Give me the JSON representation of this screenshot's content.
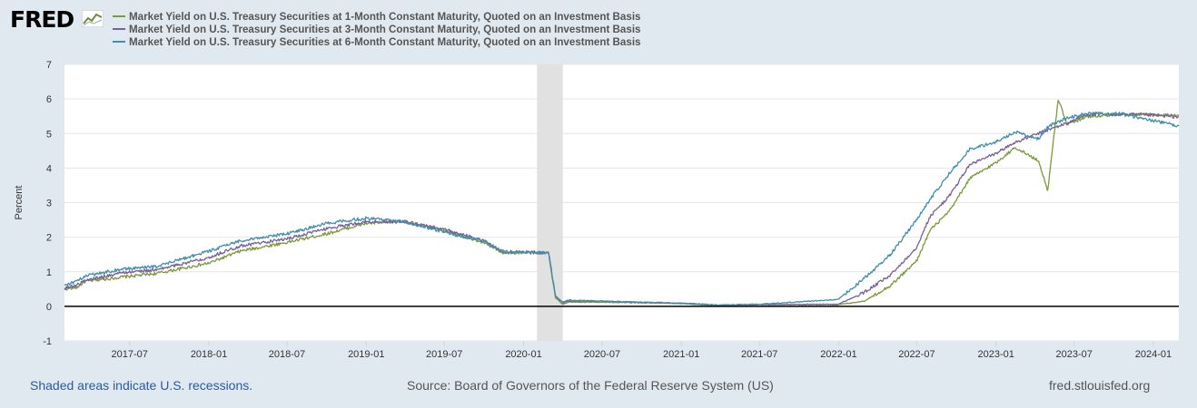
{
  "header": {
    "logo_text": "FRED",
    "logo_icon": "line-chart-icon"
  },
  "colors": {
    "background": "#e1e9f0",
    "plot_background": "#ffffff",
    "grid": "#e6e6e6",
    "recession": "#e1e1e1",
    "zero_line": "#000000"
  },
  "chart_data": {
    "type": "line",
    "title": "",
    "xlabel": "",
    "ylabel": "Percent",
    "xlim": [
      "2017-01-31",
      "2024-02-29"
    ],
    "ylim": [
      -1,
      7
    ],
    "y_ticks": [
      "-1",
      "0",
      "1",
      "2",
      "3",
      "4",
      "5",
      "6",
      "7"
    ],
    "x_ticks": [
      "2017-07",
      "2018-01",
      "2018-07",
      "2019-01",
      "2019-07",
      "2020-01",
      "2020-07",
      "2021-01",
      "2021-07",
      "2022-01",
      "2022-07",
      "2023-01",
      "2023-07",
      "2024-01"
    ],
    "recessions": [
      {
        "start": "2020-02",
        "end": "2020-04"
      }
    ],
    "series": [
      {
        "name": "Market Yield on U.S. Treasury Securities at 1-Month Constant Maturity, Quoted on an Investment Basis",
        "color": "#7b9a3a",
        "points": [
          [
            "2017-01-31",
            0.5
          ],
          [
            "2017-03-01",
            0.55
          ],
          [
            "2017-03-20",
            0.72
          ],
          [
            "2017-06-15",
            0.85
          ],
          [
            "2017-09-01",
            0.95
          ],
          [
            "2018-01-01",
            1.25
          ],
          [
            "2018-03-15",
            1.6
          ],
          [
            "2018-07-01",
            1.85
          ],
          [
            "2018-10-01",
            2.1
          ],
          [
            "2018-12-31",
            2.4
          ],
          [
            "2019-04-01",
            2.45
          ],
          [
            "2019-07-15",
            2.15
          ],
          [
            "2019-09-30",
            1.85
          ],
          [
            "2019-11-15",
            1.55
          ],
          [
            "2020-02-28",
            1.55
          ],
          [
            "2020-03-15",
            0.25
          ],
          [
            "2020-04-01",
            0.05
          ],
          [
            "2020-04-15",
            0.12
          ],
          [
            "2020-07-01",
            0.12
          ],
          [
            "2020-12-31",
            0.08
          ],
          [
            "2021-04-01",
            0.02
          ],
          [
            "2021-06-30",
            0.05
          ],
          [
            "2021-12-31",
            0.05
          ],
          [
            "2022-03-01",
            0.15
          ],
          [
            "2022-05-01",
            0.6
          ],
          [
            "2022-06-30",
            1.3
          ],
          [
            "2022-08-01",
            2.2
          ],
          [
            "2022-09-15",
            2.75
          ],
          [
            "2022-11-01",
            3.7
          ],
          [
            "2022-12-31",
            4.15
          ],
          [
            "2023-02-15",
            4.6
          ],
          [
            "2023-04-10",
            4.2
          ],
          [
            "2023-05-01",
            3.35
          ],
          [
            "2023-05-25",
            6.0
          ],
          [
            "2023-06-15",
            5.25
          ],
          [
            "2023-08-01",
            5.5
          ],
          [
            "2023-12-01",
            5.55
          ],
          [
            "2024-02-29",
            5.52
          ]
        ]
      },
      {
        "name": "Market Yield on U.S. Treasury Securities at 3-Month Constant Maturity, Quoted on an Investment Basis",
        "color": "#7a5f9a",
        "points": [
          [
            "2017-01-31",
            0.52
          ],
          [
            "2017-03-01",
            0.62
          ],
          [
            "2017-03-20",
            0.75
          ],
          [
            "2017-06-15",
            0.98
          ],
          [
            "2017-09-01",
            1.05
          ],
          [
            "2018-01-01",
            1.42
          ],
          [
            "2018-03-15",
            1.75
          ],
          [
            "2018-07-01",
            1.95
          ],
          [
            "2018-10-01",
            2.25
          ],
          [
            "2018-12-31",
            2.45
          ],
          [
            "2019-04-01",
            2.45
          ],
          [
            "2019-07-15",
            2.18
          ],
          [
            "2019-09-30",
            1.9
          ],
          [
            "2019-11-15",
            1.58
          ],
          [
            "2020-02-28",
            1.55
          ],
          [
            "2020-03-15",
            0.3
          ],
          [
            "2020-04-01",
            0.1
          ],
          [
            "2020-04-15",
            0.15
          ],
          [
            "2020-07-01",
            0.15
          ],
          [
            "2020-12-31",
            0.09
          ],
          [
            "2021-04-01",
            0.03
          ],
          [
            "2021-06-30",
            0.05
          ],
          [
            "2021-12-31",
            0.06
          ],
          [
            "2022-03-01",
            0.4
          ],
          [
            "2022-05-01",
            0.9
          ],
          [
            "2022-06-30",
            1.7
          ],
          [
            "2022-08-01",
            2.6
          ],
          [
            "2022-09-15",
            3.2
          ],
          [
            "2022-11-01",
            4.1
          ],
          [
            "2022-12-31",
            4.42
          ],
          [
            "2023-02-15",
            4.75
          ],
          [
            "2023-04-10",
            5.0
          ],
          [
            "2023-05-01",
            5.1
          ],
          [
            "2023-06-15",
            5.3
          ],
          [
            "2023-08-01",
            5.55
          ],
          [
            "2023-12-01",
            5.55
          ],
          [
            "2024-02-29",
            5.48
          ]
        ]
      },
      {
        "name": "Market Yield on U.S. Treasury Securities at 6-Month Constant Maturity, Quoted on an Investment Basis",
        "color": "#3f8fad",
        "points": [
          [
            "2017-01-31",
            0.62
          ],
          [
            "2017-03-01",
            0.72
          ],
          [
            "2017-03-20",
            0.88
          ],
          [
            "2017-06-15",
            1.08
          ],
          [
            "2017-09-01",
            1.15
          ],
          [
            "2018-01-01",
            1.6
          ],
          [
            "2018-03-15",
            1.9
          ],
          [
            "2018-07-01",
            2.1
          ],
          [
            "2018-10-01",
            2.4
          ],
          [
            "2018-12-31",
            2.55
          ],
          [
            "2019-04-01",
            2.45
          ],
          [
            "2019-07-15",
            2.1
          ],
          [
            "2019-09-30",
            1.9
          ],
          [
            "2019-11-15",
            1.58
          ],
          [
            "2020-02-28",
            1.55
          ],
          [
            "2020-03-15",
            0.3
          ],
          [
            "2020-04-01",
            0.12
          ],
          [
            "2020-04-15",
            0.18
          ],
          [
            "2020-07-01",
            0.15
          ],
          [
            "2020-12-31",
            0.09
          ],
          [
            "2021-04-01",
            0.04
          ],
          [
            "2021-06-30",
            0.06
          ],
          [
            "2021-12-31",
            0.2
          ],
          [
            "2022-03-01",
            0.8
          ],
          [
            "2022-05-01",
            1.5
          ],
          [
            "2022-06-30",
            2.5
          ],
          [
            "2022-08-01",
            3.1
          ],
          [
            "2022-09-15",
            3.85
          ],
          [
            "2022-11-01",
            4.55
          ],
          [
            "2022-12-31",
            4.75
          ],
          [
            "2023-02-15",
            5.05
          ],
          [
            "2023-04-10",
            4.85
          ],
          [
            "2023-05-01",
            5.2
          ],
          [
            "2023-06-15",
            5.45
          ],
          [
            "2023-08-01",
            5.58
          ],
          [
            "2023-10-15",
            5.58
          ],
          [
            "2023-12-01",
            5.45
          ],
          [
            "2024-02-29",
            5.22
          ]
        ]
      }
    ]
  },
  "footer": {
    "recession_note": "Shaded areas indicate U.S. recessions.",
    "source": "Source: Board of Governors of the Federal Reserve System (US)",
    "site": "fred.stlouisfed.org"
  }
}
